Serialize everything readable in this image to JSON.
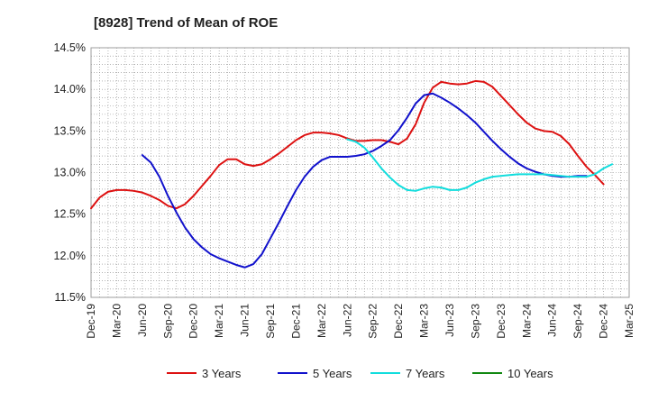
{
  "chart_data": {
    "type": "line",
    "title": "[8928]  Trend of Mean of ROE",
    "xlabel": "",
    "ylabel": "",
    "x_ticks": [
      "Dec-19",
      "Mar-20",
      "Jun-20",
      "Sep-20",
      "Dec-20",
      "Mar-21",
      "Jun-21",
      "Sep-21",
      "Dec-21",
      "Mar-22",
      "Jun-22",
      "Sep-22",
      "Dec-22",
      "Mar-23",
      "Jun-23",
      "Sep-23",
      "Dec-23",
      "Mar-24",
      "Jun-24",
      "Sep-24",
      "Dec-24",
      "Mar-25"
    ],
    "y_ticks": [
      "11.5%",
      "12.0%",
      "12.5%",
      "13.0%",
      "13.5%",
      "14.0%",
      "14.5%"
    ],
    "ylim": [
      11.5,
      14.5
    ],
    "y_unit": "%",
    "grid": true,
    "legend_position": "bottom",
    "series": [
      {
        "name": "3 Years",
        "color": "#dd1111",
        "start_index": 0,
        "values": [
          12.57,
          12.7,
          12.77,
          12.79,
          12.79,
          12.78,
          12.76,
          12.72,
          12.67,
          12.6,
          12.57,
          12.62,
          12.72,
          12.84,
          12.96,
          13.09,
          13.16,
          13.16,
          13.1,
          13.08,
          13.1,
          13.16,
          13.23,
          13.31,
          13.39,
          13.45,
          13.48,
          13.48,
          13.47,
          13.45,
          13.41,
          13.38,
          13.38,
          13.39,
          13.39,
          13.37,
          13.34,
          13.41,
          13.58,
          13.84,
          14.02,
          14.09,
          14.07,
          14.06,
          14.07,
          14.1,
          14.09,
          14.03,
          13.92,
          13.81,
          13.7,
          13.6,
          13.53,
          13.5,
          13.49,
          13.44,
          13.34,
          13.2,
          13.07,
          12.97,
          12.86
        ]
      },
      {
        "name": "5 Years",
        "color": "#1111cc",
        "start_index": 6,
        "values": [
          13.21,
          13.12,
          12.95,
          12.72,
          12.52,
          12.34,
          12.2,
          12.1,
          12.02,
          11.97,
          11.93,
          11.89,
          11.86,
          11.9,
          12.02,
          12.21,
          12.4,
          12.6,
          12.79,
          12.95,
          13.07,
          13.15,
          13.19,
          13.19,
          13.19,
          13.2,
          13.22,
          13.26,
          13.32,
          13.39,
          13.51,
          13.66,
          13.83,
          13.93,
          13.95,
          13.9,
          13.84,
          13.77,
          13.69,
          13.6,
          13.49,
          13.38,
          13.28,
          13.19,
          13.11,
          13.05,
          13.01,
          12.98,
          12.96,
          12.95,
          12.95,
          12.96,
          12.96
        ]
      },
      {
        "name": "7 Years",
        "color": "#11dddd",
        "start_index": 30,
        "values": [
          13.4,
          13.37,
          13.3,
          13.18,
          13.05,
          12.94,
          12.85,
          12.79,
          12.78,
          12.81,
          12.83,
          12.82,
          12.79,
          12.79,
          12.82,
          12.88,
          12.92,
          12.95,
          12.96,
          12.97,
          12.98,
          12.98,
          12.98,
          12.98,
          12.97,
          12.96,
          12.95,
          12.95,
          12.95,
          12.98,
          13.05,
          13.1
        ]
      },
      {
        "name": "10 Years",
        "color": "#118811",
        "start_index": 0,
        "values": []
      }
    ]
  }
}
